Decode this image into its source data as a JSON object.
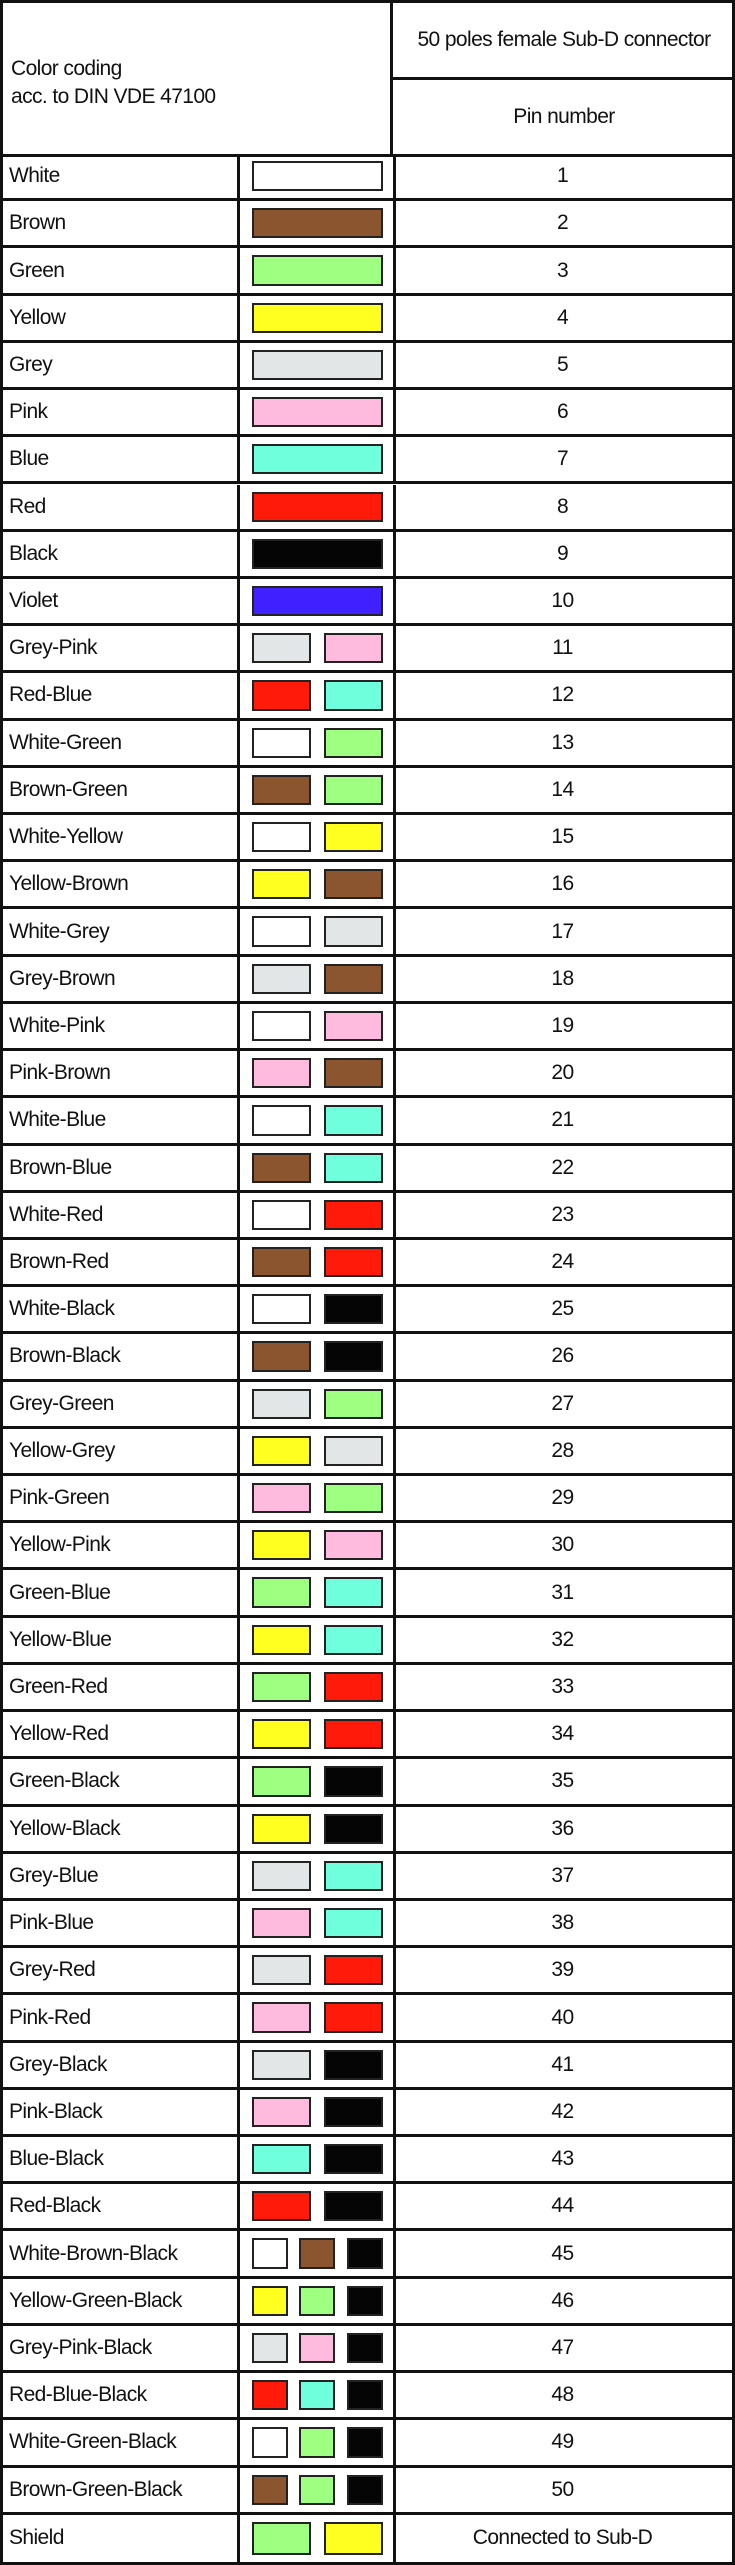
{
  "header": {
    "color_coding_line1": "Color coding",
    "color_coding_line2": "acc. to DIN VDE 47100",
    "connector": "50 poles female Sub-D connector",
    "pin_number": "Pin number"
  },
  "colors": {
    "White": "#FFFFFF",
    "Brown": "#8B5530",
    "Green": "#9EFF80",
    "Yellow": "#FFFF20",
    "Grey": "#E3E6E6",
    "Pink": "#FFBBDD",
    "Blue": "#70FFDD",
    "Red": "#FF1A0A",
    "Black": "#050505",
    "Violet": "#4020FF"
  },
  "rows": [
    {
      "name": "White",
      "swatches": [
        "White"
      ],
      "pin": "1"
    },
    {
      "name": "Brown",
      "swatches": [
        "Brown"
      ],
      "pin": "2"
    },
    {
      "name": "Green",
      "swatches": [
        "Green"
      ],
      "pin": "3"
    },
    {
      "name": "Yellow",
      "swatches": [
        "Yellow"
      ],
      "pin": "4"
    },
    {
      "name": "Grey",
      "swatches": [
        "Grey"
      ],
      "pin": "5"
    },
    {
      "name": "Pink",
      "swatches": [
        "Pink"
      ],
      "pin": "6"
    },
    {
      "name": "Blue",
      "swatches": [
        "Blue"
      ],
      "pin": "7"
    },
    {
      "name": "Red",
      "swatches": [
        "Red"
      ],
      "pin": "8"
    },
    {
      "name": "Black",
      "swatches": [
        "Black"
      ],
      "pin": "9"
    },
    {
      "name": "Violet",
      "swatches": [
        "Violet"
      ],
      "pin": "10"
    },
    {
      "name": "Grey-Pink",
      "swatches": [
        "Grey",
        "Pink"
      ],
      "pin": "11"
    },
    {
      "name": "Red-Blue",
      "swatches": [
        "Red",
        "Blue"
      ],
      "pin": "12"
    },
    {
      "name": "White-Green",
      "swatches": [
        "White",
        "Green"
      ],
      "pin": "13"
    },
    {
      "name": "Brown-Green",
      "swatches": [
        "Brown",
        "Green"
      ],
      "pin": "14"
    },
    {
      "name": "White-Yellow",
      "swatches": [
        "White",
        "Yellow"
      ],
      "pin": "15"
    },
    {
      "name": "Yellow-Brown",
      "swatches": [
        "Yellow",
        "Brown"
      ],
      "pin": "16"
    },
    {
      "name": "White-Grey",
      "swatches": [
        "White",
        "Grey"
      ],
      "pin": "17"
    },
    {
      "name": "Grey-Brown",
      "swatches": [
        "Grey",
        "Brown"
      ],
      "pin": "18"
    },
    {
      "name": "White-Pink",
      "swatches": [
        "White",
        "Pink"
      ],
      "pin": "19"
    },
    {
      "name": "Pink-Brown",
      "swatches": [
        "Pink",
        "Brown"
      ],
      "pin": "20"
    },
    {
      "name": "White-Blue",
      "swatches": [
        "White",
        "Blue"
      ],
      "pin": "21"
    },
    {
      "name": "Brown-Blue",
      "swatches": [
        "Brown",
        "Blue"
      ],
      "pin": "22"
    },
    {
      "name": "White-Red",
      "swatches": [
        "White",
        "Red"
      ],
      "pin": "23"
    },
    {
      "name": "Brown-Red",
      "swatches": [
        "Brown",
        "Red"
      ],
      "pin": "24"
    },
    {
      "name": "White-Black",
      "swatches": [
        "White",
        "Black"
      ],
      "pin": "25"
    },
    {
      "name": "Brown-Black",
      "swatches": [
        "Brown",
        "Black"
      ],
      "pin": "26"
    },
    {
      "name": "Grey-Green",
      "swatches": [
        "Grey",
        "Green"
      ],
      "pin": "27"
    },
    {
      "name": "Yellow-Grey",
      "swatches": [
        "Yellow",
        "Grey"
      ],
      "pin": "28"
    },
    {
      "name": "Pink-Green",
      "swatches": [
        "Pink",
        "Green"
      ],
      "pin": "29"
    },
    {
      "name": "Yellow-Pink",
      "swatches": [
        "Yellow",
        "Pink"
      ],
      "pin": "30"
    },
    {
      "name": "Green-Blue",
      "swatches": [
        "Green",
        "Blue"
      ],
      "pin": "31"
    },
    {
      "name": "Yellow-Blue",
      "swatches": [
        "Yellow",
        "Blue"
      ],
      "pin": "32"
    },
    {
      "name": "Green-Red",
      "swatches": [
        "Green",
        "Red"
      ],
      "pin": "33"
    },
    {
      "name": "Yellow-Red",
      "swatches": [
        "Yellow",
        "Red"
      ],
      "pin": "34"
    },
    {
      "name": "Green-Black",
      "swatches": [
        "Green",
        "Black"
      ],
      "pin": "35"
    },
    {
      "name": "Yellow-Black",
      "swatches": [
        "Yellow",
        "Black"
      ],
      "pin": "36"
    },
    {
      "name": "Grey-Blue",
      "swatches": [
        "Grey",
        "Blue"
      ],
      "pin": "37"
    },
    {
      "name": "Pink-Blue",
      "swatches": [
        "Pink",
        "Blue"
      ],
      "pin": "38"
    },
    {
      "name": "Grey-Red",
      "swatches": [
        "Grey",
        "Red"
      ],
      "pin": "39"
    },
    {
      "name": "Pink-Red",
      "swatches": [
        "Pink",
        "Red"
      ],
      "pin": "40"
    },
    {
      "name": "Grey-Black",
      "swatches": [
        "Grey",
        "Black"
      ],
      "pin": "41"
    },
    {
      "name": "Pink-Black",
      "swatches": [
        "Pink",
        "Black"
      ],
      "pin": "42"
    },
    {
      "name": "Blue-Black",
      "swatches": [
        "Blue",
        "Black"
      ],
      "pin": "43"
    },
    {
      "name": "Red-Black",
      "swatches": [
        "Red",
        "Black"
      ],
      "pin": "44"
    },
    {
      "name": "White-Brown-Black",
      "swatches": [
        "White",
        "Brown",
        "Black"
      ],
      "pin": "45"
    },
    {
      "name": "Yellow-Green-Black",
      "swatches": [
        "Yellow",
        "Green",
        "Black"
      ],
      "pin": "46"
    },
    {
      "name": "Grey-Pink-Black",
      "swatches": [
        "Grey",
        "Pink",
        "Black"
      ],
      "pin": "47"
    },
    {
      "name": "Red-Blue-Black",
      "swatches": [
        "Red",
        "Blue",
        "Black"
      ],
      "pin": "48"
    },
    {
      "name": "White-Green-Black",
      "swatches": [
        "White",
        "Green",
        "Black"
      ],
      "pin": "49"
    },
    {
      "name": "Brown-Green-Black",
      "swatches": [
        "Brown",
        "Green",
        "Black"
      ],
      "pin": "50"
    },
    {
      "name": "Shield",
      "swatches": [
        "Green",
        "Yellow"
      ],
      "pin": "Connected to Sub-D"
    }
  ]
}
